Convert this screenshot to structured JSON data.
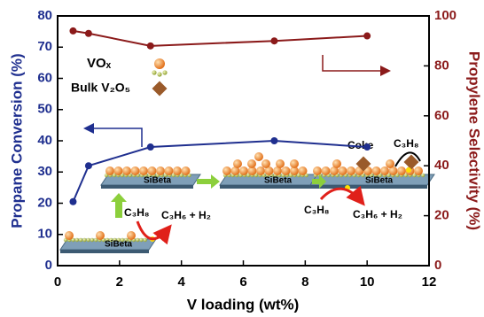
{
  "chart_data": {
    "type": "line",
    "x_label": "V loading (wt%)",
    "y_label": "Propane Conversion (%)",
    "y2_label": "Propylene Selectivity (%)",
    "xlim": [
      0,
      12
    ],
    "xticks": [
      0,
      2,
      4,
      6,
      8,
      10,
      12
    ],
    "ylim": [
      0,
      80
    ],
    "yticks": [
      0,
      10,
      20,
      30,
      40,
      50,
      60,
      70,
      80
    ],
    "y2lim": [
      0,
      100
    ],
    "y2ticks": [
      0,
      20,
      40,
      60,
      80,
      100
    ],
    "grid": false,
    "x": [
      0.5,
      1,
      3,
      7,
      10
    ],
    "series": [
      {
        "name": "Propane Conversion",
        "color": "#1f2f8f",
        "values": [
          20.5,
          32,
          38,
          40,
          38
        ]
      },
      {
        "name": "Propylene Selectivity",
        "color": "#8b1a1a",
        "axis": "y2",
        "values": [
          94,
          93,
          88,
          90,
          92
        ]
      }
    ],
    "annotations": [
      "VOₓ",
      "Bulk V₂O₅",
      "SiBeta",
      "SiBeta",
      "SiBeta",
      "SiBeta",
      "C₃H₈",
      "C₃H₆ + H₂",
      "C₃H₈",
      "C₃H₆ + H₂",
      "Coke",
      "C₃H₈"
    ]
  }
}
